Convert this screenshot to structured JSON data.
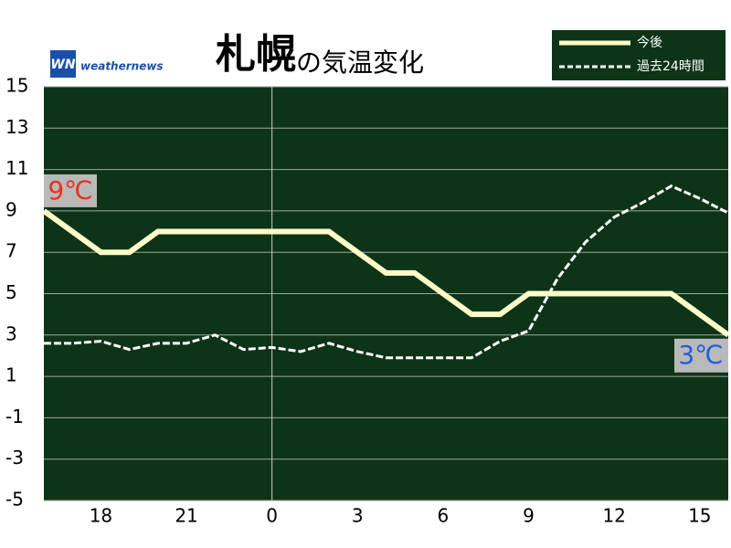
{
  "chart_data": {
    "type": "line",
    "title": "札幌",
    "title_suffix": "の気温変化",
    "logo_mark": "WN",
    "logo": "weathernews",
    "categories": [
      null,
      null,
      "18",
      null,
      null,
      "21",
      null,
      null,
      "0",
      null,
      null,
      "3",
      null,
      null,
      "6",
      null,
      null,
      "9",
      null,
      null,
      "12",
      null,
      null,
      "15",
      null
    ],
    "series": [
      {
        "name": "今後",
        "color": "#fffbc8",
        "style": "solid",
        "values": [
          9,
          8,
          7,
          7,
          8,
          8,
          8,
          8,
          8,
          8,
          8,
          7,
          6,
          6,
          5,
          4,
          4,
          5,
          5,
          5,
          5,
          5,
          5,
          4,
          3
        ]
      },
      {
        "name": "過去24時間",
        "color": "#ffffff",
        "style": "dashed",
        "values": [
          2.6,
          2.6,
          2.7,
          2.3,
          2.6,
          2.6,
          3.0,
          2.3,
          2.4,
          2.2,
          2.6,
          2.2,
          1.9,
          1.9,
          1.9,
          1.9,
          2.7,
          3.2,
          5.7,
          7.5,
          8.7,
          9.4,
          10.2,
          9.6,
          8.9
        ]
      }
    ],
    "annotations": [
      "9℃",
      "3℃"
    ],
    "ylim": [
      -5,
      15
    ],
    "yticks": [
      15,
      13,
      11,
      9,
      7,
      5,
      3,
      1,
      -1,
      -3,
      -5
    ],
    "grid": true,
    "plot_color": "#0e3418",
    "legend": "top-right"
  }
}
